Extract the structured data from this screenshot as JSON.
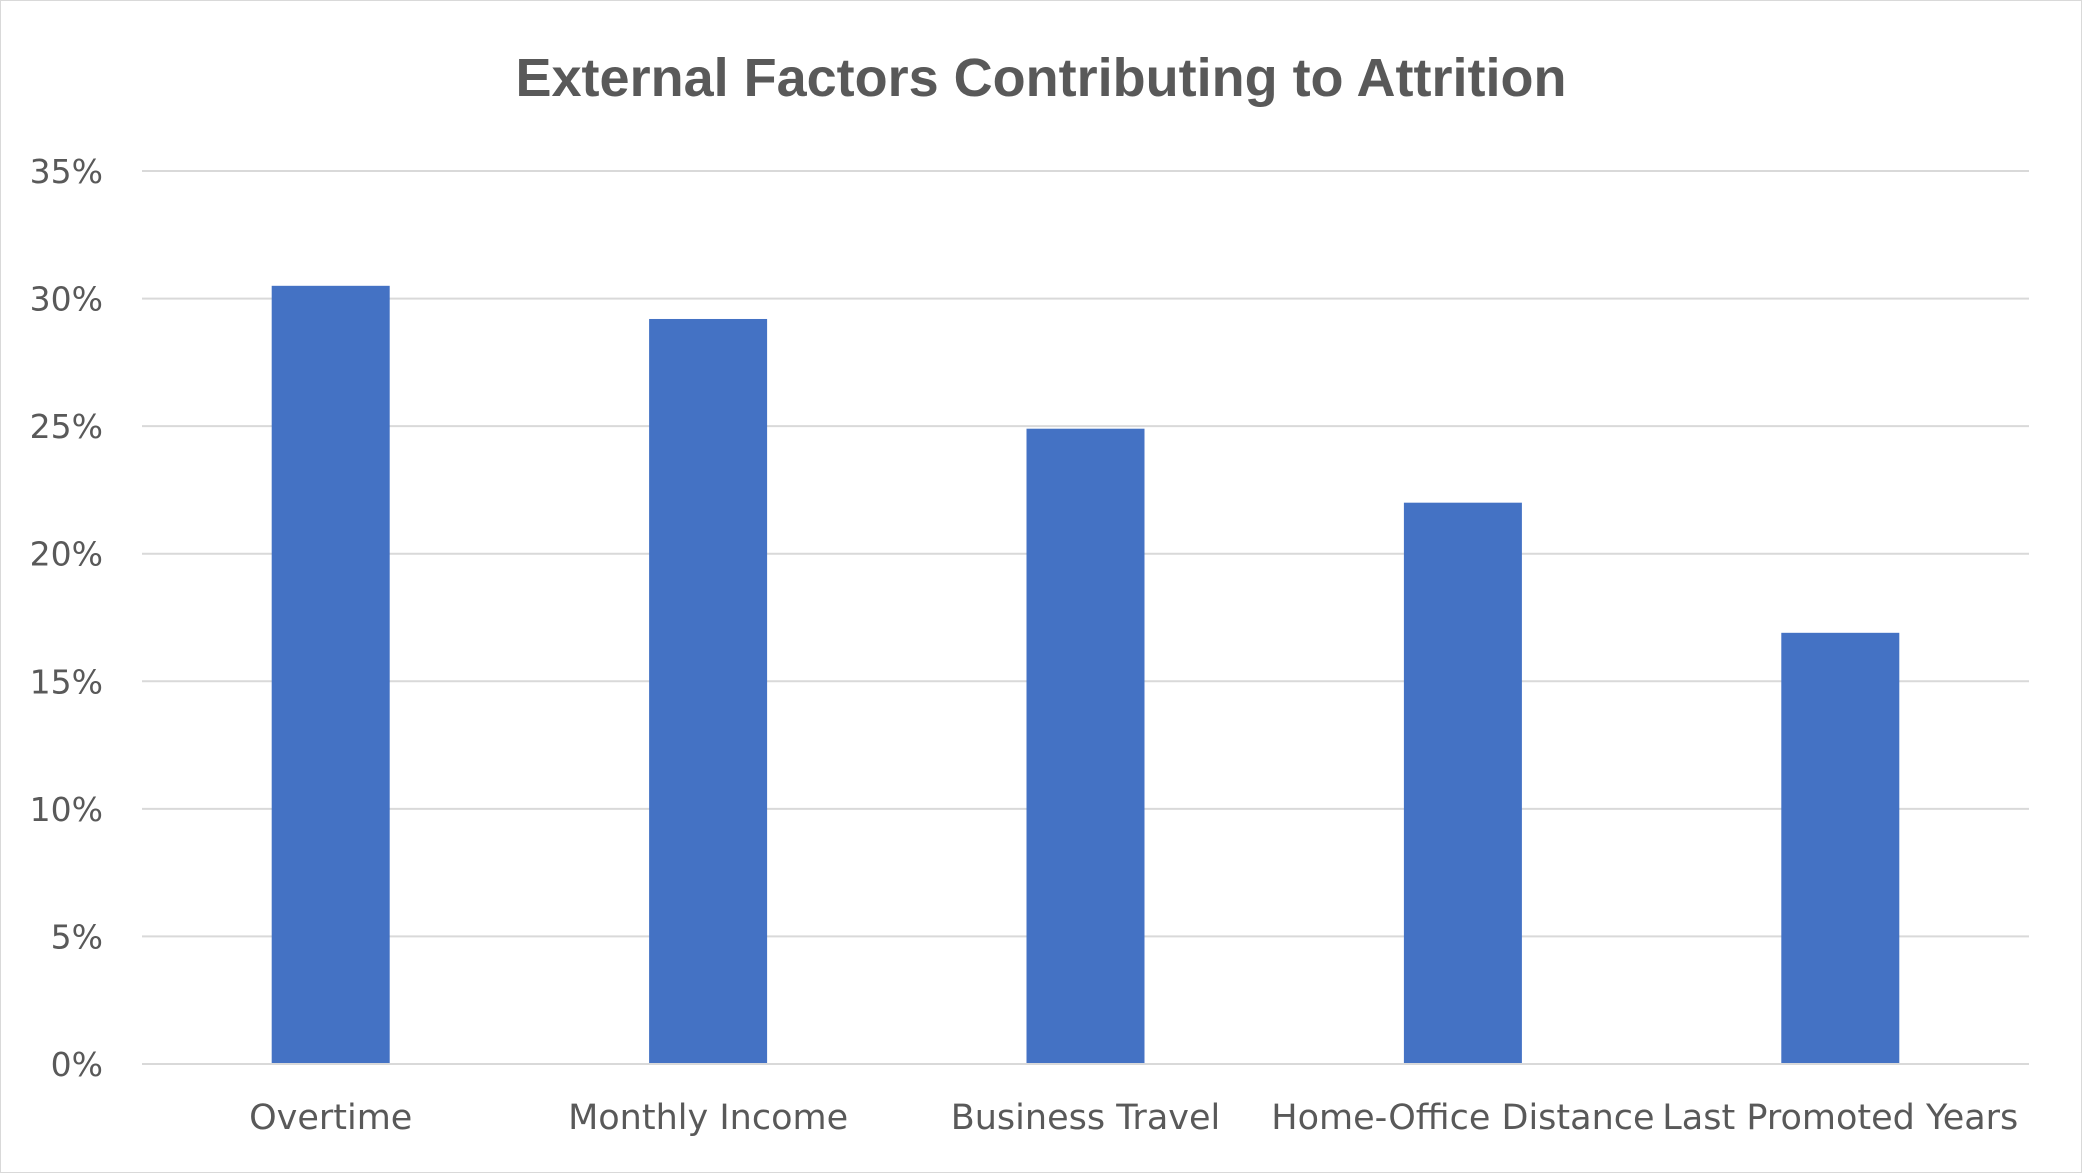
{
  "chart_data": {
    "type": "bar",
    "title": "External Factors Contributing to Attrition",
    "xlabel": "",
    "ylabel": "",
    "categories": [
      "Overtime",
      "Monthly Income",
      "Business Travel",
      "Home-Office Distance",
      "Last Promoted Years"
    ],
    "values": [
      30.5,
      29.2,
      24.9,
      22.0,
      16.9
    ],
    "value_format": "percent",
    "ylim": [
      0,
      35
    ],
    "yticks": [
      "0%",
      "5%",
      "10%",
      "15%",
      "20%",
      "25%",
      "30%",
      "35%"
    ],
    "grid": true,
    "legend": "none",
    "bar_color": "#4472C4"
  }
}
